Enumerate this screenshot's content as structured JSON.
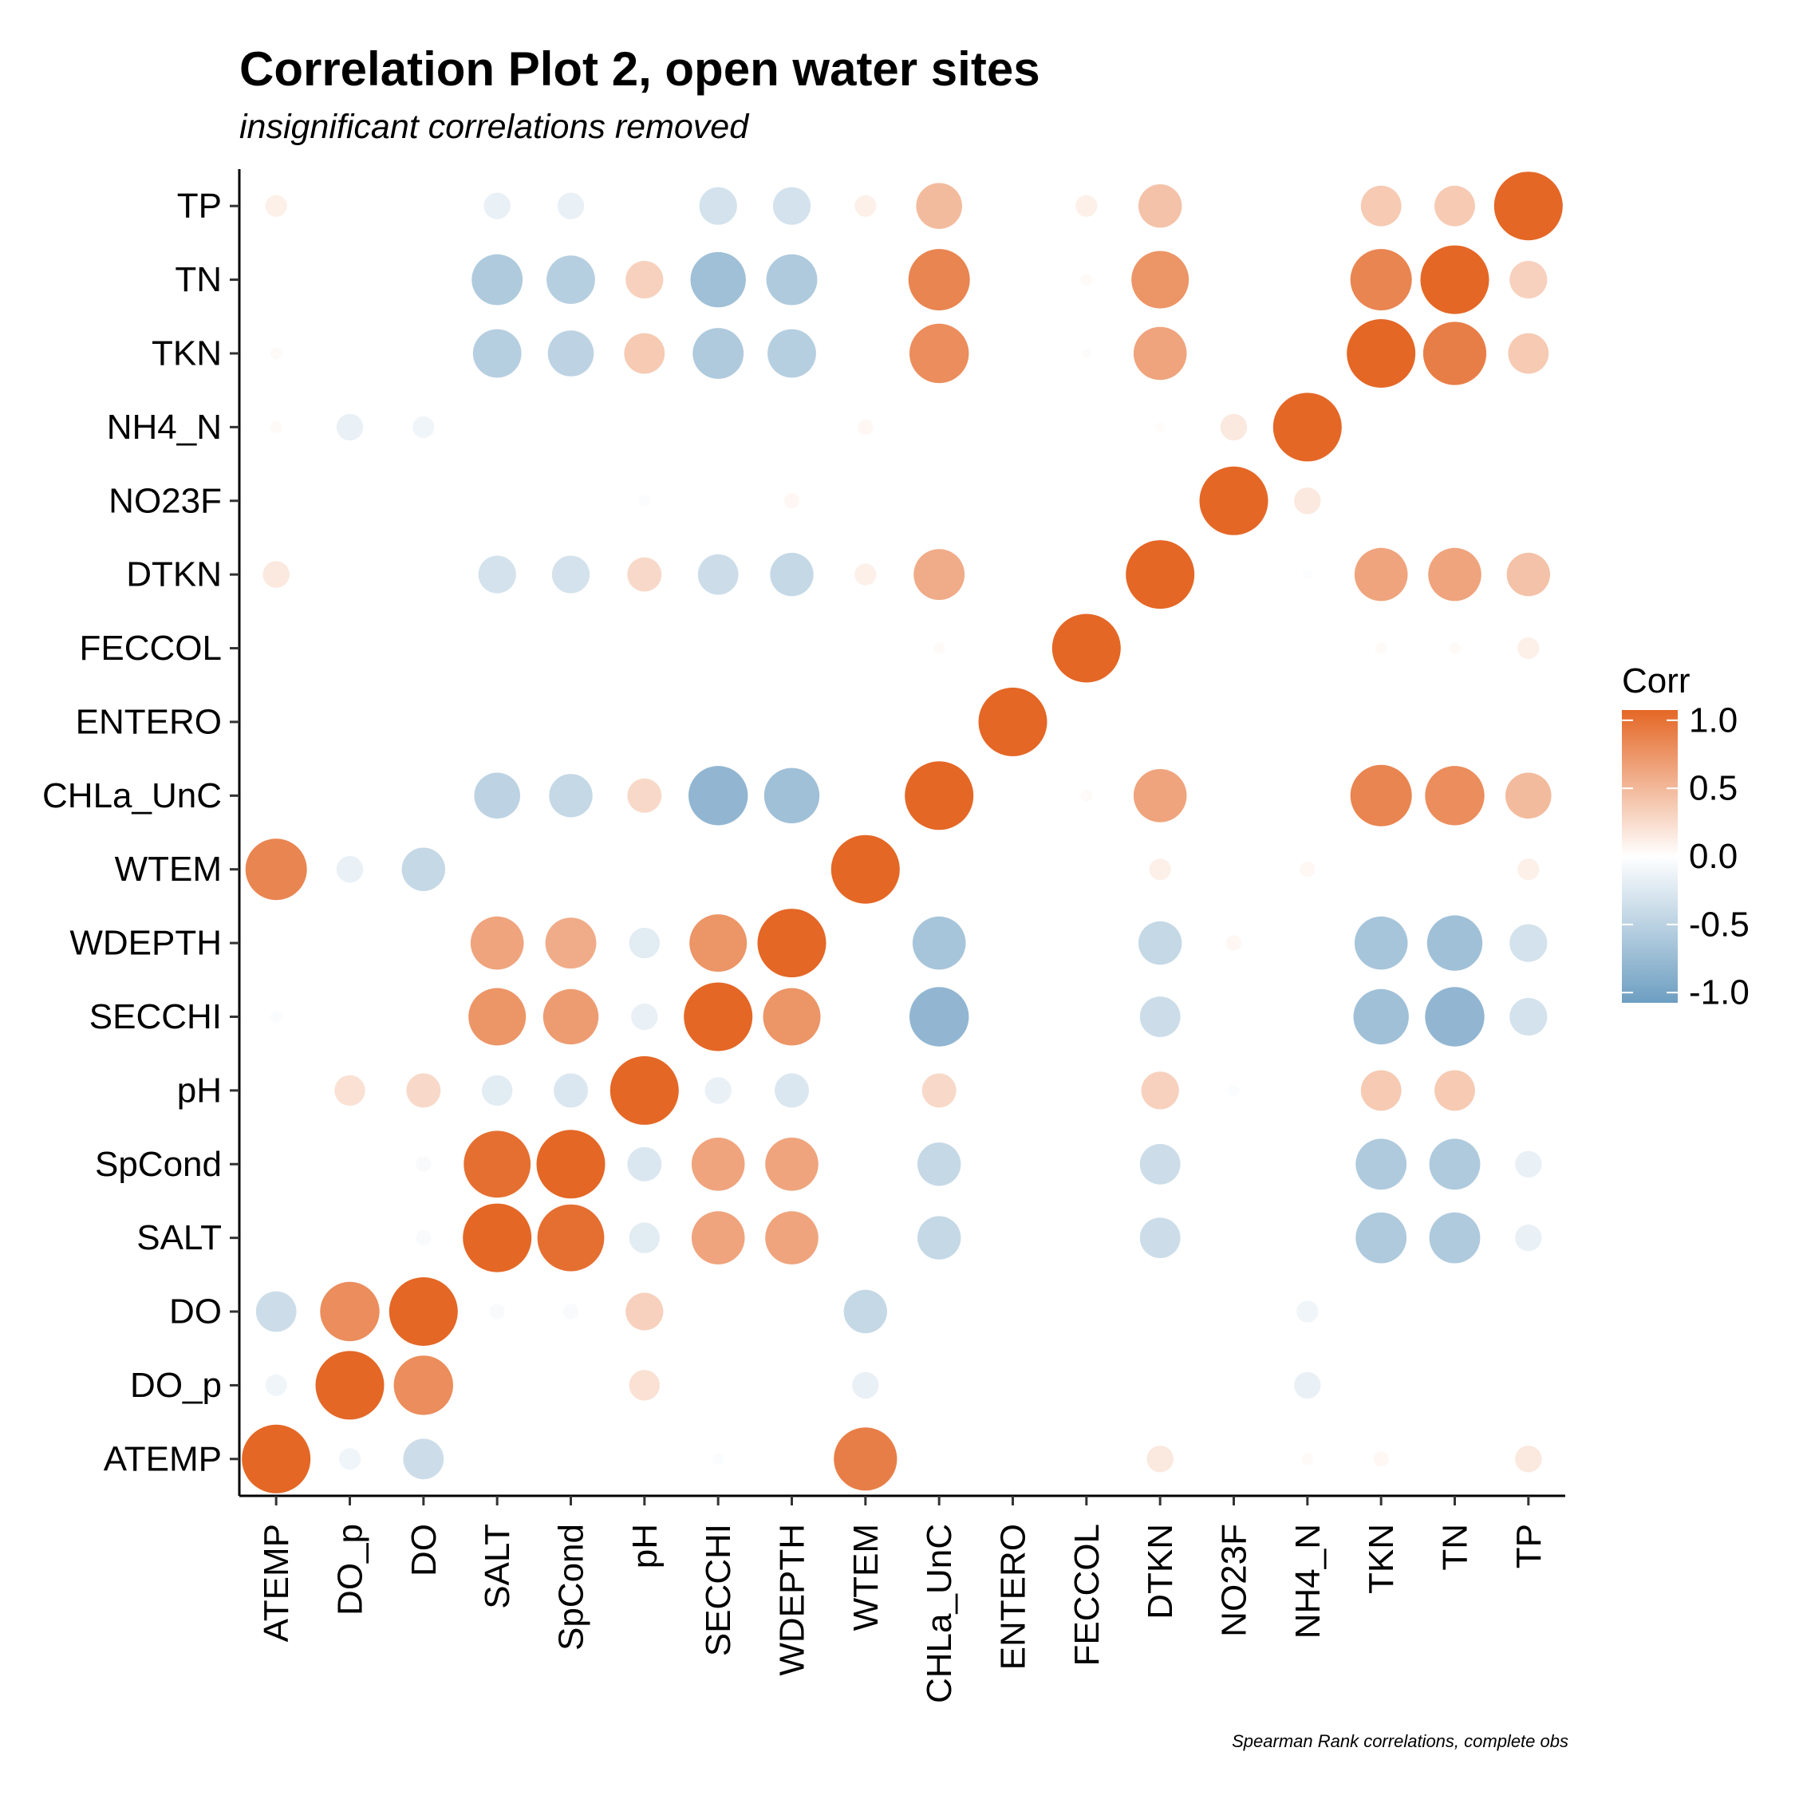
{
  "chart_data": {
    "type": "heatmap",
    "style": "circle-correlogram",
    "title": "Correlation Plot 2, open water sites",
    "subtitle": "insignificant correlations removed",
    "caption": "Spearman Rank correlations, complete obs",
    "x_categories": [
      "ATEMP",
      "DO_p",
      "DO",
      "SALT",
      "SpCond",
      "pH",
      "SECCHI",
      "WDEPTH",
      "WTEM",
      "CHLa_UnC",
      "ENTERO",
      "FECCOL",
      "DTKN",
      "NO23F",
      "NH4_N",
      "TKN",
      "TN",
      "TP"
    ],
    "y_categories": [
      "ATEMP",
      "DO_p",
      "DO",
      "SALT",
      "SpCond",
      "pH",
      "SECCHI",
      "WDEPTH",
      "WTEM",
      "CHLa_UnC",
      "ENTERO",
      "FECCOL",
      "DTKN",
      "NO23F",
      "NH4_N",
      "TKN",
      "TN",
      "TP"
    ],
    "values": [
      [
        1.0,
        -0.1,
        -0.35,
        null,
        null,
        null,
        -0.03,
        null,
        0.85,
        null,
        null,
        null,
        0.15,
        null,
        0.03,
        0.05,
        null,
        0.15
      ],
      [
        -0.1,
        1.0,
        0.75,
        null,
        null,
        0.2,
        null,
        null,
        -0.15,
        null,
        null,
        null,
        null,
        null,
        -0.15,
        null,
        null,
        null
      ],
      [
        -0.35,
        0.75,
        1.0,
        -0.05,
        -0.05,
        0.3,
        null,
        null,
        -0.4,
        null,
        null,
        null,
        null,
        null,
        -0.1,
        null,
        null,
        null
      ],
      [
        null,
        null,
        -0.05,
        1.0,
        0.95,
        -0.2,
        0.6,
        0.6,
        null,
        -0.4,
        null,
        null,
        -0.35,
        null,
        null,
        -0.55,
        -0.55,
        -0.15
      ],
      [
        null,
        null,
        -0.05,
        0.95,
        1.0,
        -0.25,
        0.6,
        0.6,
        null,
        -0.4,
        null,
        null,
        -0.35,
        null,
        null,
        -0.55,
        -0.55,
        -0.15
      ],
      [
        null,
        0.2,
        0.25,
        -0.2,
        -0.25,
        1.0,
        -0.15,
        -0.25,
        null,
        0.25,
        null,
        null,
        0.3,
        -0.03,
        null,
        0.35,
        0.35,
        null
      ],
      [
        -0.03,
        null,
        null,
        0.7,
        0.65,
        -0.15,
        1.0,
        0.7,
        null,
        -0.75,
        null,
        null,
        -0.35,
        null,
        null,
        -0.65,
        -0.75,
        -0.3
      ],
      [
        null,
        null,
        null,
        0.6,
        0.55,
        -0.2,
        0.7,
        1.0,
        null,
        -0.6,
        null,
        null,
        -0.4,
        0.05,
        null,
        -0.6,
        -0.65,
        -0.3
      ],
      [
        0.8,
        -0.15,
        -0.4,
        null,
        null,
        null,
        null,
        null,
        1.0,
        null,
        null,
        null,
        0.1,
        null,
        0.05,
        null,
        null,
        0.1
      ],
      [
        null,
        null,
        null,
        -0.45,
        -0.4,
        0.25,
        -0.75,
        -0.65,
        null,
        1.0,
        null,
        0.03,
        0.6,
        null,
        null,
        0.8,
        0.75,
        0.45
      ],
      [
        null,
        null,
        null,
        null,
        null,
        null,
        null,
        null,
        null,
        null,
        1.0,
        null,
        null,
        null,
        null,
        null,
        null,
        null
      ],
      [
        null,
        null,
        null,
        null,
        null,
        null,
        null,
        null,
        null,
        0.03,
        null,
        1.0,
        null,
        null,
        null,
        0.03,
        0.03,
        0.1
      ],
      [
        0.15,
        null,
        null,
        -0.3,
        -0.3,
        0.25,
        -0.35,
        -0.4,
        0.1,
        0.55,
        null,
        null,
        1.0,
        null,
        -0.02,
        0.6,
        0.6,
        0.4
      ],
      [
        null,
        null,
        null,
        null,
        null,
        -0.03,
        null,
        0.05,
        null,
        null,
        null,
        null,
        null,
        1.0,
        0.15,
        null,
        null,
        null
      ],
      [
        0.03,
        -0.15,
        -0.1,
        null,
        null,
        null,
        null,
        null,
        0.05,
        null,
        null,
        null,
        0.02,
        0.15,
        1.0,
        null,
        null,
        null
      ],
      [
        0.03,
        null,
        null,
        -0.5,
        -0.45,
        0.35,
        -0.55,
        -0.5,
        null,
        0.75,
        null,
        0.02,
        0.6,
        null,
        null,
        1.0,
        0.85,
        0.35
      ],
      [
        null,
        null,
        null,
        -0.55,
        -0.5,
        0.3,
        -0.65,
        -0.55,
        null,
        0.8,
        null,
        0.03,
        0.7,
        null,
        null,
        0.8,
        1.0,
        0.3
      ],
      [
        0.1,
        null,
        null,
        -0.15,
        -0.15,
        null,
        -0.3,
        -0.3,
        0.1,
        0.45,
        null,
        0.1,
        0.4,
        null,
        null,
        0.35,
        0.35,
        1.0
      ]
    ],
    "legend": {
      "title": "Corr",
      "ticks": [
        "1.0",
        "0.5",
        "0.0",
        "-0.5",
        "-1.0"
      ],
      "tick_values": [
        1.0,
        0.5,
        0.0,
        -0.5,
        -1.0
      ],
      "placement": "right"
    },
    "color_scale": {
      "low": "#6d9ec1",
      "mid": "#ffffff",
      "high": "#e46726"
    },
    "grid": false
  }
}
